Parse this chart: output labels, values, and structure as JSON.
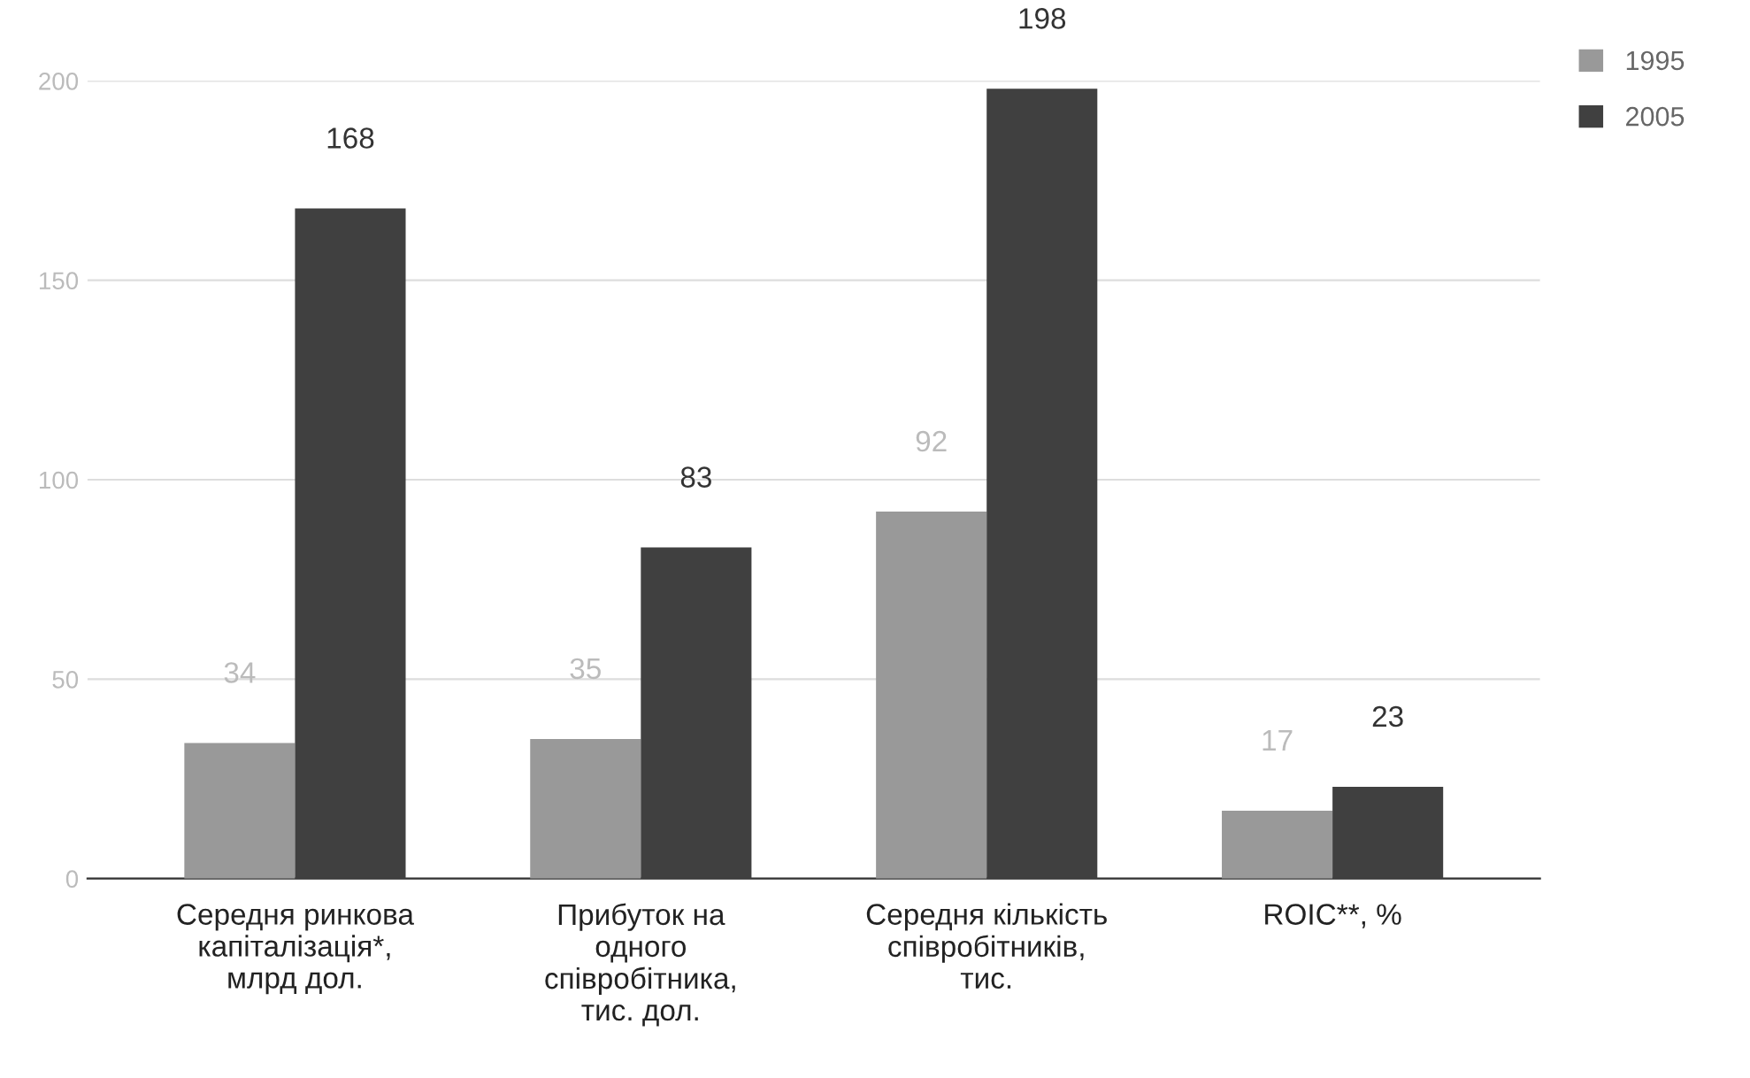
{
  "chart_data": {
    "type": "bar",
    "categories": [
      "Середня ринкова\nкапіталізація*,\nмлрд дол.",
      "Прибуток на\nодного\nспівробітника,\nтис. дол.",
      "Середня кількість\nспівробітників,\nтис.",
      "ROIC**, %"
    ],
    "series": [
      {
        "name": "1995",
        "color": "#999999",
        "values": [
          34,
          35,
          92,
          17
        ]
      },
      {
        "name": "2005",
        "color": "#404040",
        "values": [
          168,
          83,
          198,
          23
        ]
      }
    ],
    "ylim": [
      0,
      200
    ],
    "yticks": [
      0,
      50,
      100,
      150,
      200
    ],
    "grid": "y",
    "legend": "top right",
    "data_labels": true
  }
}
